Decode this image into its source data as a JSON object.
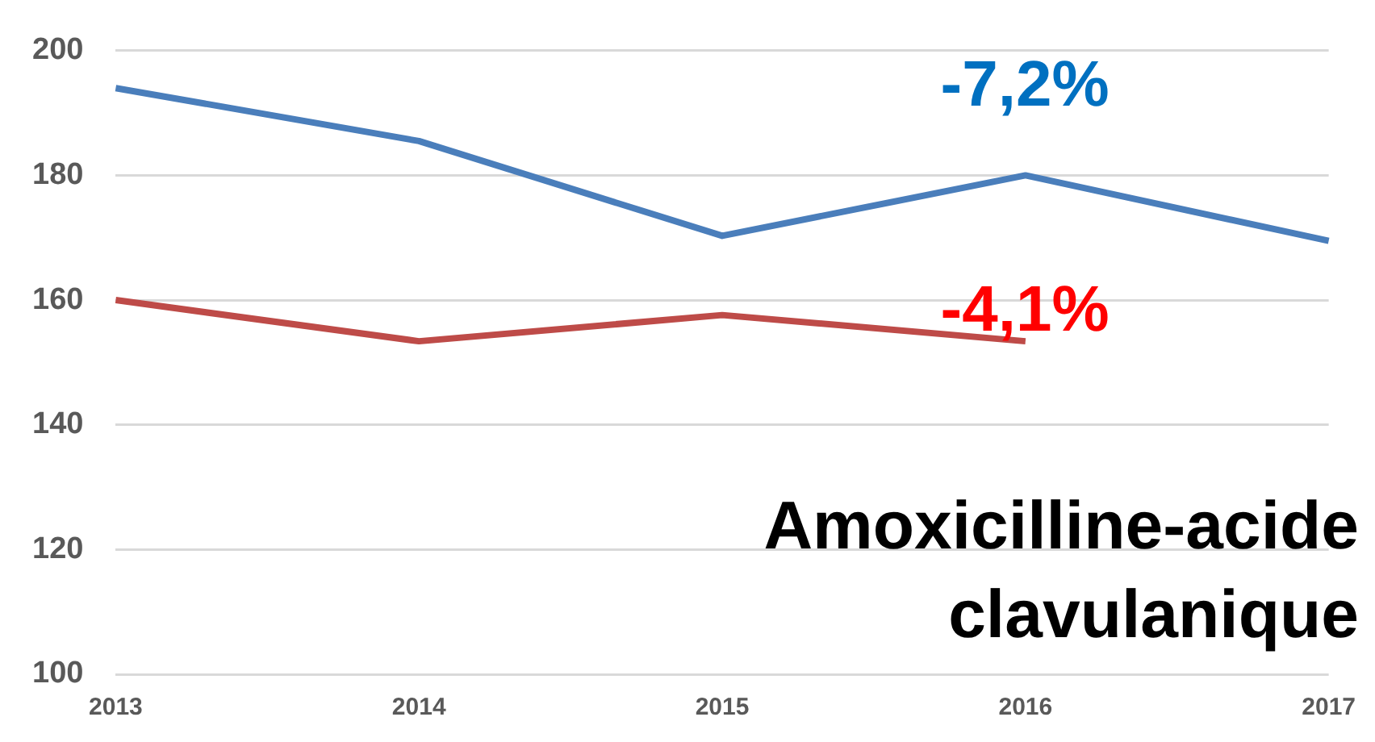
{
  "chart_data": {
    "type": "line",
    "title": "Amoxicilline-acide clavulanique",
    "categories": [
      "2013",
      "2014",
      "2015",
      "2016",
      "2017"
    ],
    "series": [
      {
        "color": "#4a7ebb",
        "values": [
          194,
          185.5,
          170.3,
          180,
          169.5
        ]
      },
      {
        "color": "#be4b48",
        "values": [
          160,
          153.4,
          157.6,
          153.4,
          null
        ]
      }
    ],
    "annotations": [
      "-7,2%",
      "-4,1%"
    ],
    "ylim": [
      100,
      200
    ],
    "yticks": [
      100,
      120,
      140,
      160,
      180,
      200
    ],
    "grid": "y",
    "legend": false,
    "marker": "none",
    "line_style": "solid"
  }
}
